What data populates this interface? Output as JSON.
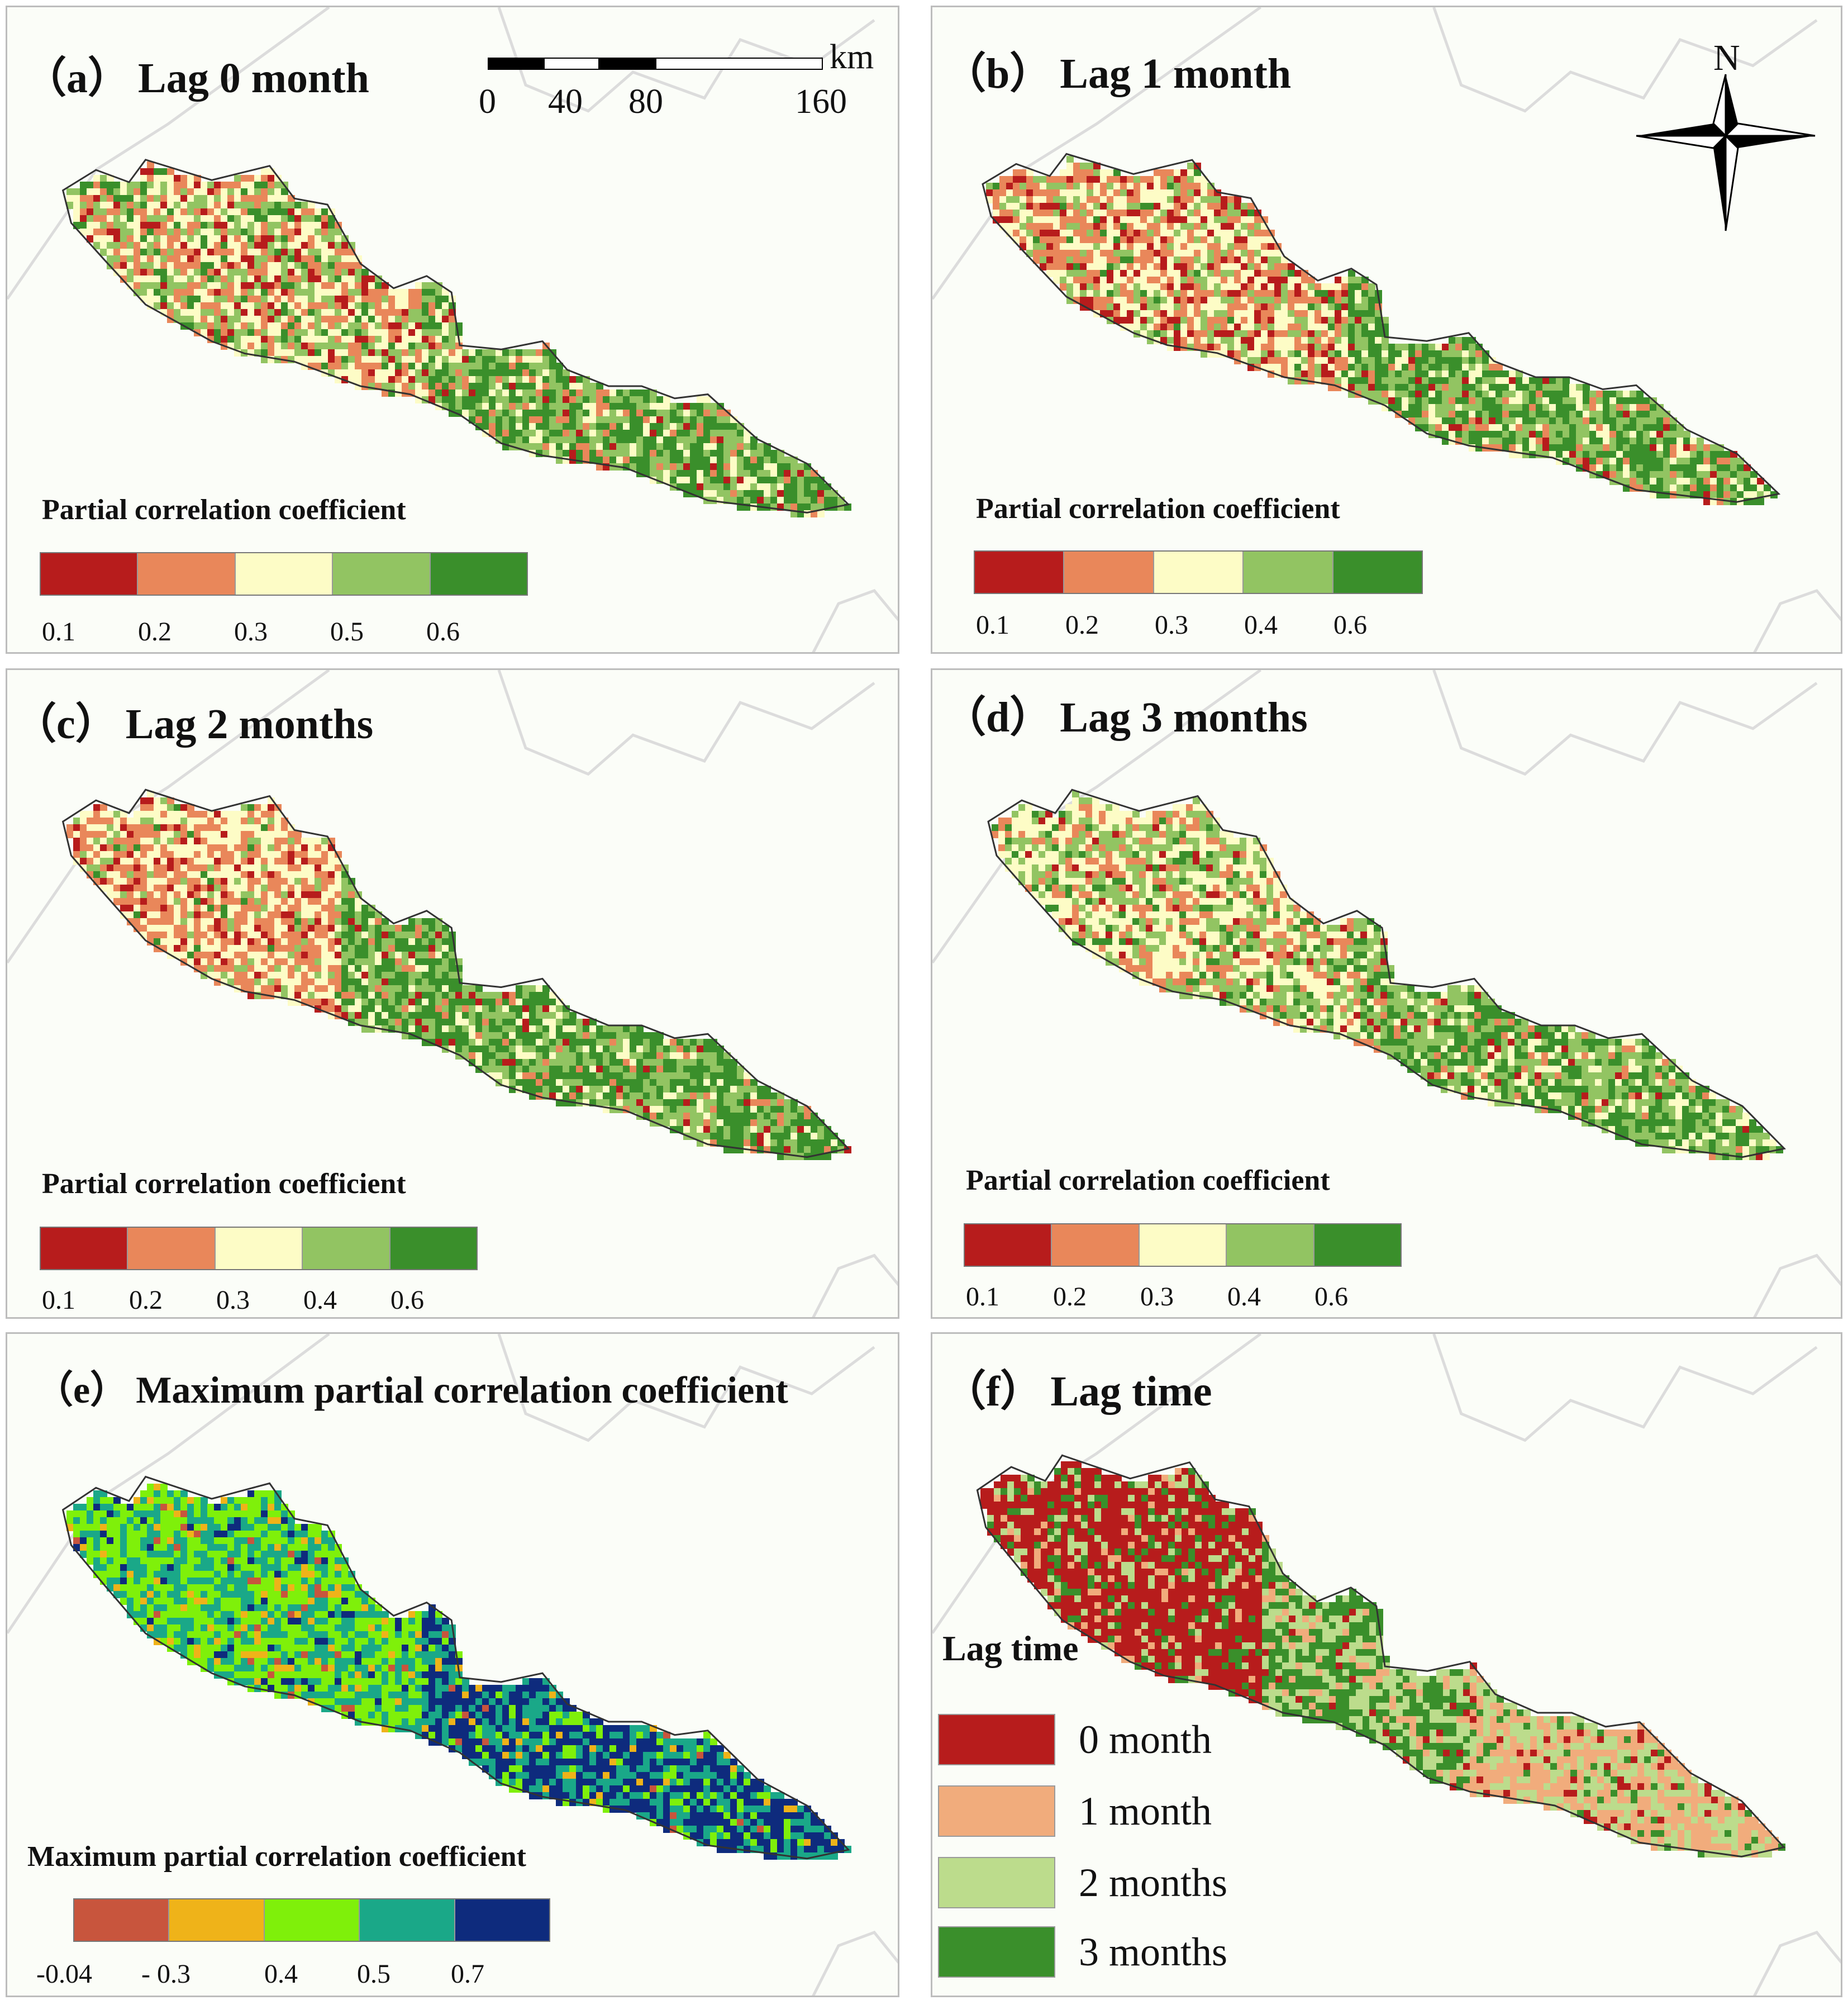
{
  "panels": [
    {
      "label": "（a）",
      "title": "Lag 0 month",
      "legend_title": "Partial correlation coefficient",
      "ticks": [
        "0.1",
        "0.2",
        "0.3",
        "0.5",
        "0.6"
      ],
      "colors": [
        "#b71c1c",
        "#e9875a",
        "#fdfcc6",
        "#92c462",
        "#3a8f2b"
      ]
    },
    {
      "label": "（b）",
      "title": "Lag 1 month",
      "legend_title": "Partial correlation coefficient",
      "ticks": [
        "0.1",
        "0.2",
        "0.3",
        "0.4",
        "0.6"
      ],
      "colors": [
        "#b71c1c",
        "#e9875a",
        "#fdfcc6",
        "#92c462",
        "#3a8f2b"
      ]
    },
    {
      "label": "（c）",
      "title": "Lag 2 months",
      "legend_title": "Partial correlation coefficient",
      "ticks": [
        "0.1",
        "0.2",
        "0.3",
        "0.4",
        "0.6"
      ],
      "colors": [
        "#b71c1c",
        "#e9875a",
        "#fdfcc6",
        "#92c462",
        "#3a8f2b"
      ]
    },
    {
      "label": "（d）",
      "title": "Lag 3 months",
      "legend_title": "Partial correlation coefficient",
      "ticks": [
        "0.1",
        "0.2",
        "0.3",
        "0.4",
        "0.6"
      ],
      "colors": [
        "#b71c1c",
        "#e9875a",
        "#fdfcc6",
        "#92c462",
        "#3a8f2b"
      ]
    },
    {
      "label": "（e）",
      "title": "Maximum partial correlation coefficient",
      "legend_title": "Maximum partial correlation coefficient",
      "ticks": [
        "-0.04",
        "- 0.3",
        "0.4",
        "0.5",
        "0.7"
      ],
      "colors": [
        "#c8553d",
        "#efb319",
        "#7ff00a",
        "#1aa888",
        "#0e2b7d"
      ]
    },
    {
      "label": "（f）",
      "title": "Lag time",
      "legend_title": "Lag time",
      "classes": [
        {
          "label": "0 month",
          "color": "#b71c1c"
        },
        {
          "label": "1 month",
          "color": "#f1ac7c"
        },
        {
          "label": "2 months",
          "color": "#bcdc8c"
        },
        {
          "label": "3 months",
          "color": "#3a8f2b"
        }
      ]
    }
  ],
  "scale_bar": {
    "unit": "km",
    "ticks": [
      "0",
      "40",
      "80",
      "160"
    ]
  },
  "north_label": "N"
}
